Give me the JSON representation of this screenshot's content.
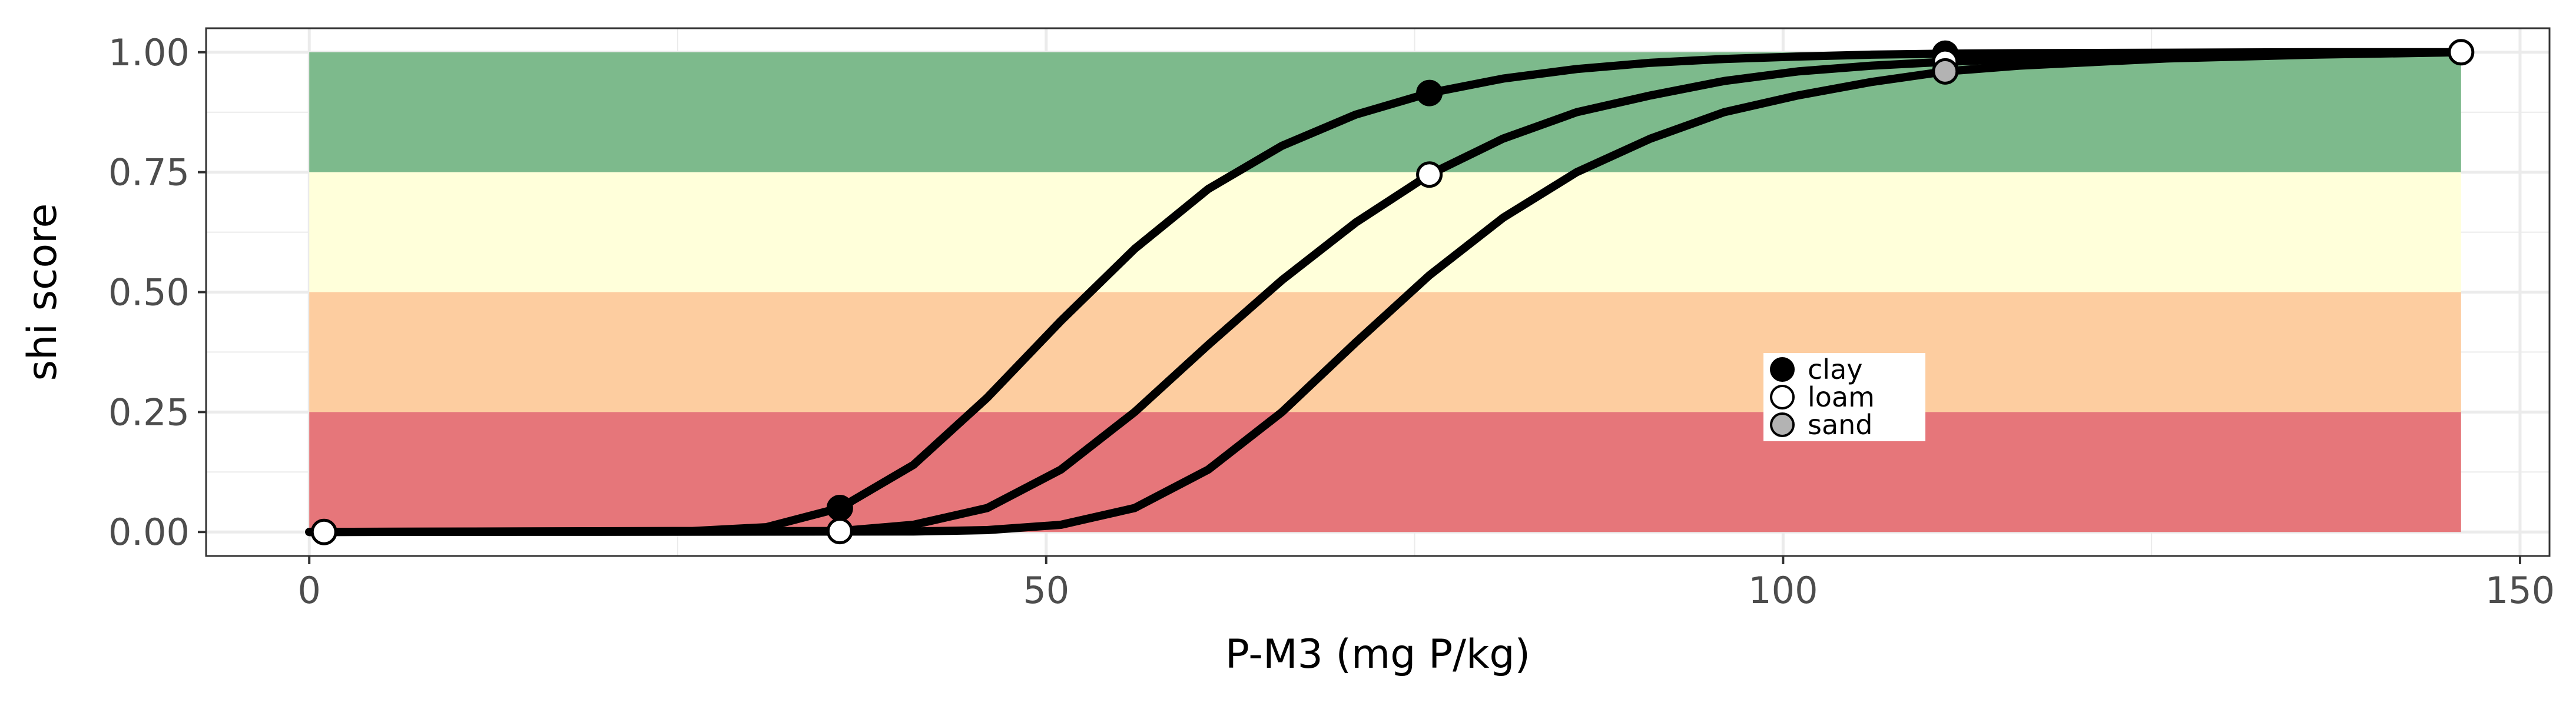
{
  "chart_data": {
    "type": "line",
    "title": "",
    "xlabel": "P-M3 (mg P/kg)",
    "ylabel": "shi score",
    "xlim": [
      -7,
      152
    ],
    "ylim": [
      -0.05,
      1.05
    ],
    "x_ticks": [
      0,
      50,
      100,
      150
    ],
    "x_tick_labels": [
      "0",
      "50",
      "100",
      "150"
    ],
    "y_ticks": [
      0,
      0.25,
      0.5,
      0.75,
      1
    ],
    "y_tick_labels": [
      "0.00",
      "0.25",
      "0.50",
      "0.75",
      "1.00"
    ],
    "grid": true,
    "legend_position": "inside-center-right",
    "bands": [
      {
        "ymin": 0.75,
        "ymax": 1.0,
        "xmin": 0,
        "xmax": 146,
        "color": "#7ab98a"
      },
      {
        "ymin": 0.5,
        "ymax": 0.75,
        "xmin": 0,
        "xmax": 146,
        "color": "#ffffd9"
      },
      {
        "ymin": 0.25,
        "ymax": 0.5,
        "xmin": 0,
        "xmax": 146,
        "color": "#fdcc9e"
      },
      {
        "ymin": 0.0,
        "ymax": 0.25,
        "xmin": 0,
        "xmax": 146,
        "color": "#e67377"
      }
    ],
    "series": [
      {
        "name": "clay",
        "color": "#000000",
        "x": [
          0,
          26,
          31,
          36,
          41,
          46,
          51,
          56,
          61,
          66,
          71,
          76,
          81,
          86,
          91,
          96,
          101,
          106,
          111,
          116,
          126,
          136,
          146
        ],
        "y": [
          0,
          0.002,
          0.01,
          0.05,
          0.14,
          0.28,
          0.44,
          0.59,
          0.715,
          0.805,
          0.87,
          0.915,
          0.945,
          0.965,
          0.978,
          0.986,
          0.991,
          0.995,
          0.997,
          0.998,
          0.999,
          1.0,
          1.0
        ],
        "points_x": [
          36,
          76,
          111
        ],
        "points_y": [
          0.05,
          0.915,
          0.997
        ],
        "marker_fill": "#000000"
      },
      {
        "name": "loam",
        "color": "#000000",
        "x": [
          0,
          36,
          41,
          46,
          51,
          56,
          61,
          66,
          71,
          76,
          81,
          86,
          91,
          96,
          101,
          106,
          111,
          116,
          126,
          136,
          146
        ],
        "y": [
          0,
          0.002,
          0.015,
          0.05,
          0.13,
          0.25,
          0.39,
          0.525,
          0.645,
          0.745,
          0.82,
          0.875,
          0.91,
          0.94,
          0.96,
          0.972,
          0.98,
          0.986,
          0.993,
          0.997,
          1.0
        ],
        "points_x": [
          1,
          36,
          76,
          111,
          146
        ],
        "points_y": [
          0,
          0.002,
          0.745,
          0.98,
          1.0
        ],
        "marker_fill": "#ffffff"
      },
      {
        "name": "sand",
        "color": "#000000",
        "x": [
          0,
          41,
          46,
          51,
          56,
          61,
          66,
          71,
          76,
          81,
          86,
          91,
          96,
          101,
          106,
          111,
          116,
          126,
          136,
          146
        ],
        "y": [
          0,
          0.001,
          0.004,
          0.015,
          0.05,
          0.13,
          0.25,
          0.395,
          0.535,
          0.655,
          0.75,
          0.82,
          0.875,
          0.91,
          0.938,
          0.96,
          0.972,
          0.987,
          0.995,
          1.0
        ],
        "points_x": [
          111
        ],
        "points_y": [
          0.96
        ],
        "marker_fill": "#b3b3b3"
      }
    ],
    "legend": [
      {
        "label": "clay",
        "fill": "#000000"
      },
      {
        "label": "loam",
        "fill": "#ffffff"
      },
      {
        "label": "sand",
        "fill": "#b3b3b3"
      }
    ]
  }
}
